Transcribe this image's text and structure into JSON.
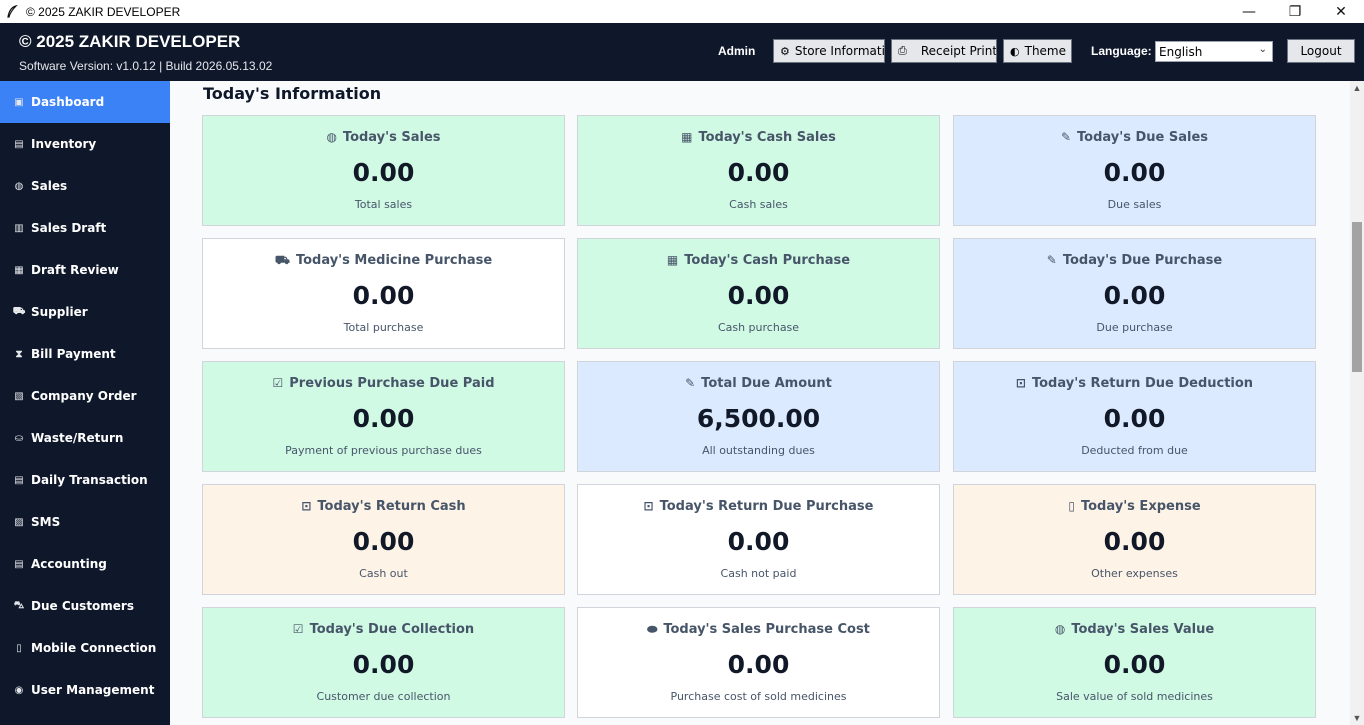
{
  "window": {
    "title": "© 2025 ZAKIR DEVELOPER",
    "minimize": "—",
    "restore": "❐",
    "close": "✕"
  },
  "header": {
    "brand": "© 2025 ZAKIR DEVELOPER",
    "version": "Software Version: v1.0.12  |  Build 2026.05.13.02",
    "user": "Admin",
    "store_button": "Store Informatic",
    "receipt_button": "Receipt Print",
    "theme_button": "Theme",
    "language_label": "Language:",
    "language_value": "English",
    "logout_button": "Logout"
  },
  "sidebar": {
    "items": [
      {
        "label": "Dashboard",
        "icon": "▣",
        "active": true
      },
      {
        "label": "Inventory",
        "icon": "▤"
      },
      {
        "label": "Sales",
        "icon": "◍"
      },
      {
        "label": "Sales Draft",
        "icon": "▥"
      },
      {
        "label": "Draft Review",
        "icon": "▦"
      },
      {
        "label": "Supplier",
        "icon": "⛟"
      },
      {
        "label": "Bill Payment",
        "icon": "⧗"
      },
      {
        "label": "Company Order",
        "icon": "▧"
      },
      {
        "label": "Waste/Return",
        "icon": "⛀"
      },
      {
        "label": "Daily Transaction",
        "icon": "▤"
      },
      {
        "label": "SMS",
        "icon": "▨"
      },
      {
        "label": "Accounting",
        "icon": "▤"
      },
      {
        "label": "Due Customers",
        "icon": "⛍"
      },
      {
        "label": "Mobile Connection",
        "icon": "▯"
      },
      {
        "label": "User Management",
        "icon": "◉"
      }
    ]
  },
  "main": {
    "section_title": "Today's Information",
    "cards": [
      {
        "title": "Today's Sales",
        "value": "0.00",
        "sub": "Total sales",
        "icon": "money-bag-icon",
        "glyph": "◍",
        "color": "green"
      },
      {
        "title": "Today's Cash Sales",
        "value": "0.00",
        "sub": "Cash sales",
        "icon": "cash-icon",
        "glyph": "▦",
        "color": "green"
      },
      {
        "title": "Today's Due Sales",
        "value": "0.00",
        "sub": "Due sales",
        "icon": "pin-icon",
        "glyph": "✎",
        "color": "blue"
      },
      {
        "title": "Today's Medicine Purchase",
        "value": "0.00",
        "sub": "Total purchase",
        "icon": "cart-icon",
        "glyph": "⛟",
        "color": "white"
      },
      {
        "title": "Today's Cash Purchase",
        "value": "0.00",
        "sub": "Cash purchase",
        "icon": "cash-icon",
        "glyph": "▦",
        "color": "green"
      },
      {
        "title": "Today's Due Purchase",
        "value": "0.00",
        "sub": "Due purchase",
        "icon": "pin-icon",
        "glyph": "✎",
        "color": "blue"
      },
      {
        "title": "Previous Purchase Due Paid",
        "value": "0.00",
        "sub": "Payment of previous purchase dues",
        "icon": "check-icon",
        "glyph": "☑",
        "color": "green"
      },
      {
        "title": "Total Due Amount",
        "value": "6,500.00",
        "sub": "All outstanding dues",
        "icon": "pin-icon",
        "glyph": "✎",
        "color": "blue"
      },
      {
        "title": "Today's Return Due Deduction",
        "value": "0.00",
        "sub": "Deducted from due",
        "icon": "return-icon",
        "glyph": "⊡",
        "color": "blue"
      },
      {
        "title": "Today's Return Cash",
        "value": "0.00",
        "sub": "Cash out",
        "icon": "return-icon",
        "glyph": "⊡",
        "color": "cream"
      },
      {
        "title": "Today's Return Due Purchase",
        "value": "0.00",
        "sub": "Cash not paid",
        "icon": "return-icon",
        "glyph": "⊡",
        "color": "white"
      },
      {
        "title": "Today's Expense",
        "value": "0.00",
        "sub": "Other expenses",
        "icon": "expense-icon",
        "glyph": "▯",
        "color": "cream"
      },
      {
        "title": "Today's Due Collection",
        "value": "0.00",
        "sub": "Customer due collection",
        "icon": "check-icon",
        "glyph": "☑",
        "color": "green"
      },
      {
        "title": "Today's Sales Purchase Cost",
        "value": "0.00",
        "sub": "Purchase cost of sold medicines",
        "icon": "pill-icon",
        "glyph": "⬬",
        "color": "white"
      },
      {
        "title": "Today's Sales Value",
        "value": "0.00",
        "sub": "Sale value of sold medicines",
        "icon": "money-bag-icon",
        "glyph": "◍",
        "color": "green"
      }
    ]
  }
}
